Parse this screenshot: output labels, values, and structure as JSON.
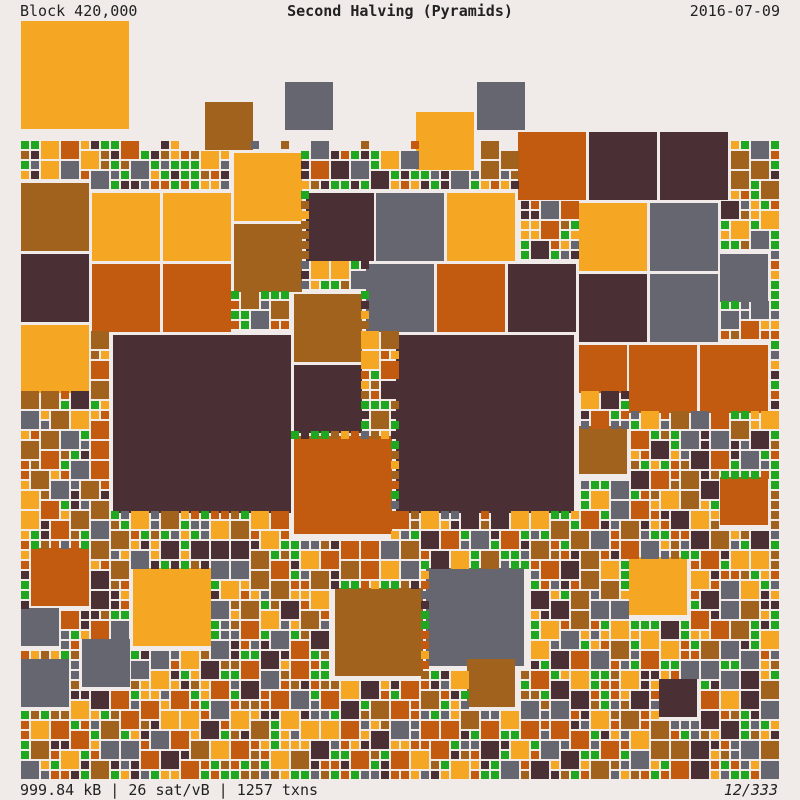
{
  "header": {
    "block": "Block 420,000",
    "title": "Second Halving (Pyramids)",
    "date": "2016-07-09"
  },
  "footer": {
    "stats": "999.84 kB | 26 sat/vB | 1257 txns",
    "page": "12/333"
  }
}
